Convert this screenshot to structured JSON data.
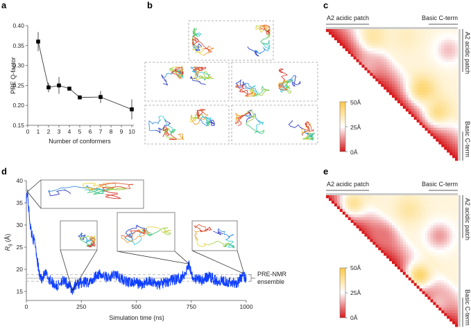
{
  "figure": {
    "panel_letters": [
      "a",
      "b",
      "c",
      "d",
      "e"
    ]
  },
  "chart_data": [
    {
      "panel": "a",
      "type": "line",
      "title": "",
      "xlabel": "Number of conformers",
      "ylabel": "PRE Q-factor",
      "xlim": [
        0,
        10
      ],
      "ylim": [
        0.15,
        0.4
      ],
      "x_ticks": [
        "0",
        "1",
        "2",
        "3",
        "4",
        "5",
        "6",
        "7",
        "8",
        "9",
        "10"
      ],
      "y_ticks": [
        "0.15",
        "0.20",
        "0.25",
        "0.30",
        "0.35",
        "0.40"
      ],
      "grid": false,
      "series": [
        {
          "name": "PRE Q-factor",
          "marker": "square",
          "color": "#000000",
          "x": [
            1,
            2,
            3,
            4,
            5,
            7,
            10
          ],
          "y": [
            0.36,
            0.245,
            0.25,
            0.242,
            0.22,
            0.221,
            0.19
          ],
          "error": [
            0.024,
            0.012,
            0.021,
            0.005,
            0.003,
            0.015,
            0.025
          ]
        }
      ]
    },
    {
      "panel": "b",
      "type": "diagram",
      "description": "Representative PRE-NMR conformer ensembles (1, 2x2, 2x2 structures) drawn as rainbow-colored backbone traces in dashed boxes",
      "groups": [
        {
          "conformers": 2
        },
        {
          "conformers": 2
        },
        {
          "conformers": 2
        },
        {
          "conformers": 2
        },
        {
          "conformers": 2
        }
      ]
    },
    {
      "panel": "c",
      "type": "heatmap",
      "title": "",
      "top_labels": [
        "A2 acidic patch",
        "Basic C-term"
      ],
      "right_labels": [
        "A2 acidic patch",
        "Basic C-term"
      ],
      "colorbar": {
        "ticks": [
          "50Å",
          "25Å",
          "0Å"
        ],
        "min": 0,
        "max": 50,
        "colors": [
          "#d7191c",
          "#ffffff",
          "#fdc84a"
        ]
      },
      "hotspots": [
        {
          "row": 0.25,
          "col": 0.33,
          "value": 15
        },
        {
          "row": 0.15,
          "col": 0.92,
          "value": 18
        },
        {
          "row": 0.35,
          "col": 0.2,
          "value": 20
        },
        {
          "row": 0.45,
          "col": 0.72,
          "value": 45
        },
        {
          "row": 0.62,
          "col": 0.84,
          "value": 42
        },
        {
          "row": 0.05,
          "col": 0.35,
          "value": 38
        },
        {
          "row": 0.05,
          "col": 0.6,
          "value": 34
        }
      ]
    },
    {
      "panel": "d",
      "type": "line",
      "title": "",
      "xlabel": "Simulation time (ns)",
      "ylabel": "Rg (Å)",
      "ylabel_main": "R",
      "ylabel_sub": "g",
      "ylabel_unit": " (Å)",
      "xlim": [
        0,
        1000
      ],
      "ylim": [
        13,
        40
      ],
      "x_ticks": [
        "0",
        "250",
        "500",
        "750",
        "1000"
      ],
      "y_ticks": [
        "15",
        "20",
        "25",
        "30",
        "35",
        "40"
      ],
      "grid": false,
      "series": [
        {
          "name": "Rg trajectory",
          "color": "#1040ff",
          "x": [
            0,
            5,
            10,
            20,
            30,
            40,
            50,
            60,
            70,
            80,
            90,
            100,
            120,
            140,
            160,
            180,
            200,
            210,
            220,
            250,
            280,
            300,
            320,
            350,
            380,
            400,
            430,
            460,
            500,
            530,
            560,
            600,
            630,
            660,
            700,
            720,
            740,
            760,
            800,
            830,
            860,
            900,
            930,
            960,
            980,
            1000
          ],
          "y": [
            36,
            37.5,
            34,
            29,
            27,
            26,
            22,
            18.5,
            18,
            18.5,
            19,
            18,
            17,
            16,
            17.5,
            17,
            16,
            15,
            16.5,
            17,
            17,
            17.5,
            19,
            18.5,
            18,
            19,
            18,
            17,
            17,
            16.5,
            17.5,
            16.5,
            17,
            17.5,
            18,
            19,
            21,
            18,
            17.5,
            18.5,
            17.5,
            17.5,
            17,
            17,
            18.5,
            18
          ]
        }
      ],
      "reference_band": {
        "label_line1": "PRE-NMR",
        "label_line2": "ensemble",
        "mean": 18.0,
        "lower": 17.3,
        "upper": 18.8
      },
      "insets": [
        {
          "time": 5,
          "Rg": 37.5
        },
        {
          "time": 210,
          "Rg": 15.2
        },
        {
          "time": 740,
          "Rg": 21.2
        },
        {
          "time": 990,
          "Rg": 19.0
        }
      ]
    },
    {
      "panel": "e",
      "type": "heatmap",
      "title": "",
      "top_labels": [
        "A2 acidic patch",
        "Basic C-term"
      ],
      "right_labels": [
        "A2 acidic patch",
        "Basic C-term"
      ],
      "colorbar": {
        "ticks": [
          "50Å",
          "25Å",
          "0Å"
        ],
        "min": 0,
        "max": 50,
        "colors": [
          "#d7191c",
          "#ffffff",
          "#fdc84a"
        ]
      },
      "hotspots": [
        {
          "row": 0.3,
          "col": 0.42,
          "value": 10
        },
        {
          "row": 0.3,
          "col": 0.85,
          "value": 14
        },
        {
          "row": 0.6,
          "col": 0.7,
          "value": 46
        },
        {
          "row": 0.05,
          "col": 0.2,
          "value": 40
        },
        {
          "row": 0.1,
          "col": 0.62,
          "value": 38
        },
        {
          "row": 0.8,
          "col": 0.85,
          "value": 18
        }
      ]
    }
  ]
}
